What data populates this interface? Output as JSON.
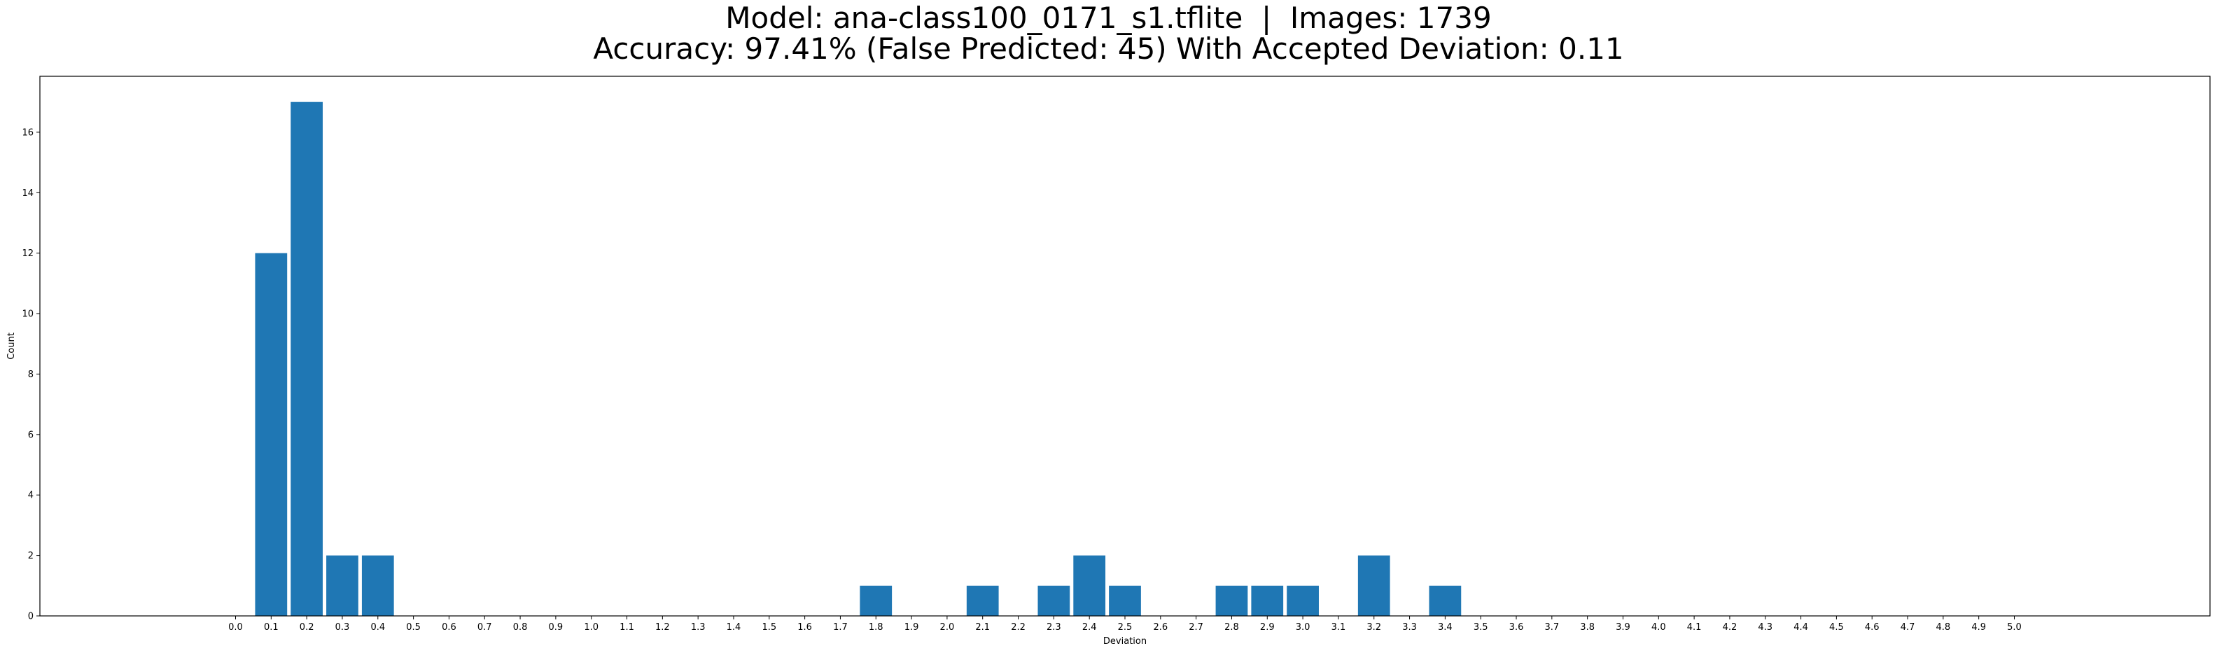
{
  "chart_data": {
    "type": "bar",
    "title_line1": "Model: ana-class100_0171_s1.tflite  |  Images: 1739",
    "title_line2": "Accuracy: 97.41% (False Predicted: 45) With Accepted Deviation: 0.11",
    "xlabel": "Deviation",
    "ylabel": "Count",
    "ylim": [
      0,
      17.85
    ],
    "xlim": [
      -0.55,
      5.55
    ],
    "yticks": [
      0,
      2,
      4,
      6,
      8,
      10,
      12,
      14,
      16
    ],
    "xticks": [
      0.0,
      0.1,
      0.2,
      0.3,
      0.4,
      0.5,
      0.6,
      0.7,
      0.8,
      0.9,
      1.0,
      1.1,
      1.2,
      1.3,
      1.4,
      1.5,
      1.6,
      1.7,
      1.8,
      1.9,
      2.0,
      2.1,
      2.2,
      2.3,
      2.4,
      2.5,
      2.6,
      2.7,
      2.8,
      2.9,
      3.0,
      3.1,
      3.2,
      3.3,
      3.4,
      3.5,
      3.6,
      3.7,
      3.8,
      3.9,
      4.0,
      4.1,
      4.2,
      4.3,
      4.4,
      4.5,
      4.6,
      4.7,
      4.8,
      4.9,
      5.0
    ],
    "bars": [
      {
        "x": 0.1,
        "value": 12
      },
      {
        "x": 0.2,
        "value": 17
      },
      {
        "x": 0.3,
        "value": 2
      },
      {
        "x": 0.4,
        "value": 2
      },
      {
        "x": 1.8,
        "value": 1
      },
      {
        "x": 2.1,
        "value": 1
      },
      {
        "x": 2.3,
        "value": 1
      },
      {
        "x": 2.4,
        "value": 2
      },
      {
        "x": 2.5,
        "value": 1
      },
      {
        "x": 2.8,
        "value": 1
      },
      {
        "x": 2.9,
        "value": 1
      },
      {
        "x": 3.0,
        "value": 1
      },
      {
        "x": 3.2,
        "value": 2
      },
      {
        "x": 3.4,
        "value": 1
      }
    ],
    "bar_width": 0.09,
    "bar_color": "#1f77b4",
    "grid": false
  }
}
